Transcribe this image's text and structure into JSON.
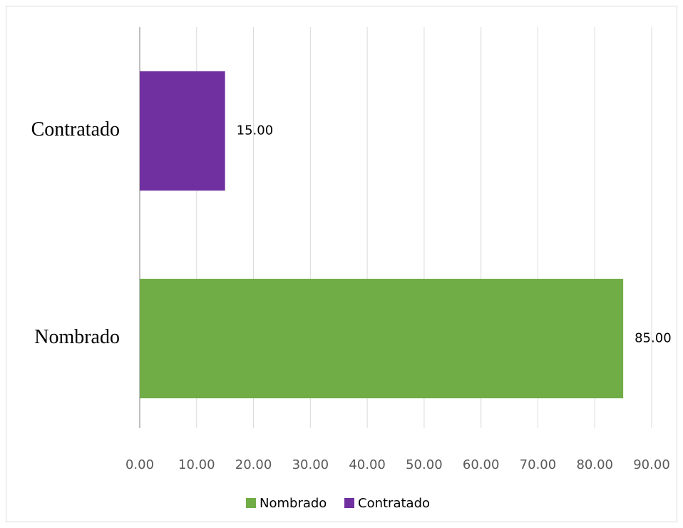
{
  "chart_data": {
    "type": "bar",
    "orientation": "horizontal",
    "categories": [
      "Nombrado",
      "Contratado"
    ],
    "series": [
      {
        "name": "Nombrado",
        "color": "#70ad47",
        "values": [
          85,
          null
        ],
        "value_labels": [
          "85.00",
          null
        ]
      },
      {
        "name": "Contratado",
        "color": "#7030a0",
        "values": [
          null,
          15
        ],
        "value_labels": [
          null,
          "15.00"
        ]
      }
    ],
    "xlim": [
      0,
      90
    ],
    "xticks": [
      {
        "value": 0,
        "label": "0.00"
      },
      {
        "value": 10,
        "label": "10.00"
      },
      {
        "value": 20,
        "label": "20.00"
      },
      {
        "value": 30,
        "label": "30.00"
      },
      {
        "value": 40,
        "label": "40.00"
      },
      {
        "value": 50,
        "label": "50.00"
      },
      {
        "value": 60,
        "label": "60.00"
      },
      {
        "value": 70,
        "label": "70.00"
      },
      {
        "value": 80,
        "label": "80.00"
      },
      {
        "value": 90,
        "label": "90.00"
      }
    ],
    "grid": true,
    "legend": "bottom"
  }
}
